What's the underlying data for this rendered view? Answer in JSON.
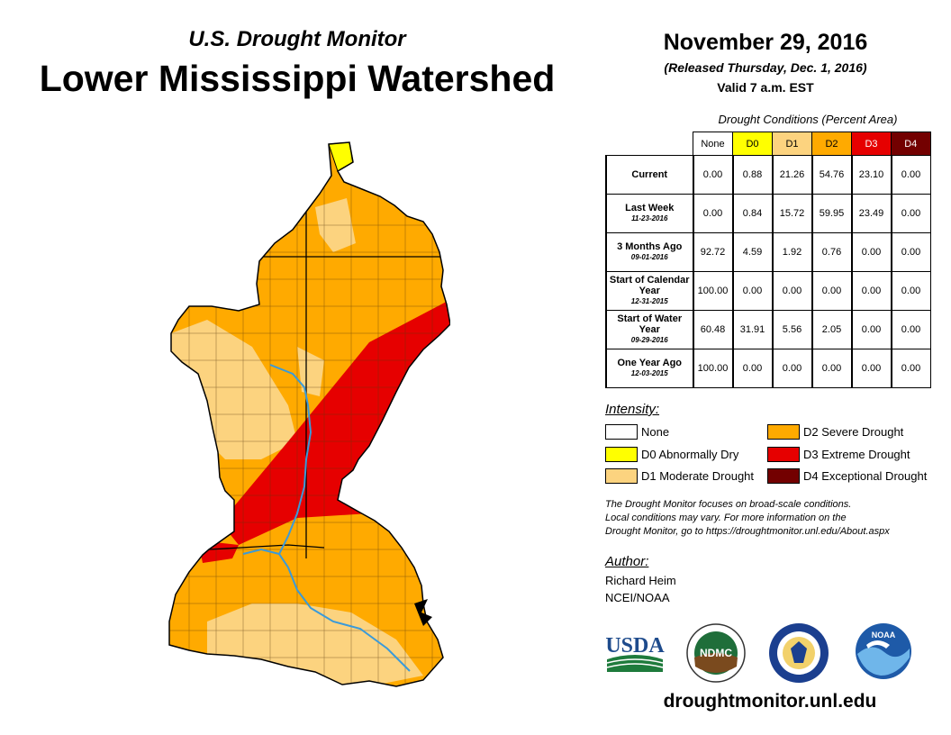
{
  "header": {
    "subtitle": "U.S. Drought Monitor",
    "title": "Lower Mississippi Watershed",
    "date": "November 29, 2016",
    "released": "(Released Thursday, Dec. 1, 2016)",
    "valid": "Valid 7 a.m. EST"
  },
  "table": {
    "caption": "Drought Conditions (Percent Area)",
    "columns": [
      "None",
      "D0",
      "D1",
      "D2",
      "D3",
      "D4"
    ],
    "rows": [
      {
        "label": "Current",
        "date": "",
        "values": [
          "0.00",
          "0.88",
          "21.26",
          "54.76",
          "23.10",
          "0.00"
        ]
      },
      {
        "label": "Last Week",
        "date": "11-23-2016",
        "values": [
          "0.00",
          "0.84",
          "15.72",
          "59.95",
          "23.49",
          "0.00"
        ]
      },
      {
        "label": "3 Months Ago",
        "date": "09-01-2016",
        "values": [
          "92.72",
          "4.59",
          "1.92",
          "0.76",
          "0.00",
          "0.00"
        ]
      },
      {
        "label": "Start of Calendar Year",
        "date": "12-31-2015",
        "values": [
          "100.00",
          "0.00",
          "0.00",
          "0.00",
          "0.00",
          "0.00"
        ]
      },
      {
        "label": "Start of Water Year",
        "date": "09-29-2016",
        "values": [
          "60.48",
          "31.91",
          "5.56",
          "2.05",
          "0.00",
          "0.00"
        ]
      },
      {
        "label": "One Year Ago",
        "date": "12-03-2015",
        "values": [
          "100.00",
          "0.00",
          "0.00",
          "0.00",
          "0.00",
          "0.00"
        ]
      }
    ]
  },
  "legend": {
    "title": "Intensity:",
    "items": [
      {
        "label": "None",
        "color": "#ffffff"
      },
      {
        "label": "D0 Abnormally Dry",
        "color": "#ffff00"
      },
      {
        "label": "D1 Moderate Drought",
        "color": "#fcd37f"
      },
      {
        "label": "D2 Severe Drought",
        "color": "#ffaa00"
      },
      {
        "label": "D3 Extreme Drought",
        "color": "#e60000"
      },
      {
        "label": "D4 Exceptional Drought",
        "color": "#730000"
      }
    ]
  },
  "note": {
    "line1": "The Drought Monitor focuses on broad-scale conditions.",
    "line2": "Local conditions may vary. For more information on the",
    "line3": "Drought Monitor, go to https://droughtmonitor.unl.edu/About.aspx"
  },
  "author": {
    "heading": "Author:",
    "name": "Richard Heim",
    "org": "NCEI/NOAA"
  },
  "logos": {
    "usda": "USDA",
    "ndmc": "NDMC",
    "noaa": "NOAA"
  },
  "footer_url": "droughtmonitor.unl.edu",
  "colors": {
    "d0": "#ffff00",
    "d1": "#fcd37f",
    "d2": "#ffaa00",
    "d3": "#e60000",
    "d4": "#730000",
    "river": "#3a9ad9",
    "usda_green": "#1e7b3c",
    "usda_blue": "#1e4b8c"
  }
}
